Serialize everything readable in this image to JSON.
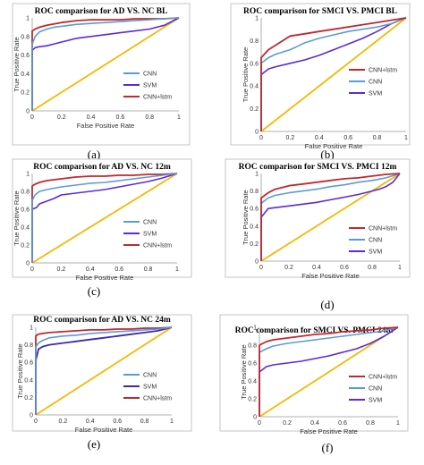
{
  "chart_data": [
    {
      "type": "line",
      "panel_label": "(a)",
      "title": "ROC comparison for AD VS. NC BL",
      "xlabel": "False Positive Rate",
      "ylabel": "True Positive Rate",
      "xlim": [
        0,
        1
      ],
      "ylim": [
        0,
        1
      ],
      "x_ticks": [
        "0",
        "0.2",
        "0.4",
        "0.6",
        "0.8",
        "1"
      ],
      "y_ticks": [
        "0",
        "0.2",
        "0.4",
        "0.6",
        "0.8",
        "1"
      ],
      "grid": false,
      "legend_position": "lower-right",
      "series": [
        {
          "name": "CNN",
          "color": "#5b9bd5",
          "width": 1.6,
          "x": [
            0,
            0,
            0.02,
            0.05,
            0.1,
            0.15,
            0.2,
            0.3,
            0.4,
            0.5,
            0.6,
            0.7,
            0.8,
            0.9,
            1
          ],
          "y": [
            0,
            0.72,
            0.8,
            0.85,
            0.88,
            0.9,
            0.91,
            0.93,
            0.94,
            0.95,
            0.96,
            0.97,
            0.98,
            0.99,
            1
          ]
        },
        {
          "name": "SVM",
          "color": "#5b2bd6",
          "width": 1.6,
          "x": [
            0,
            0,
            0.02,
            0.05,
            0.1,
            0.15,
            0.2,
            0.25,
            0.3,
            0.35,
            0.4,
            0.5,
            0.6,
            0.7,
            0.8,
            0.9,
            1
          ],
          "y": [
            0,
            0.65,
            0.68,
            0.69,
            0.7,
            0.72,
            0.74,
            0.76,
            0.78,
            0.79,
            0.8,
            0.82,
            0.84,
            0.86,
            0.88,
            0.92,
            1
          ]
        },
        {
          "name": "CNN+lstm",
          "color": "#c0282f",
          "width": 1.8,
          "x": [
            0,
            0,
            0.02,
            0.05,
            0.1,
            0.2,
            0.3,
            0.4,
            0.5,
            0.6,
            0.7,
            0.8,
            0.9,
            1
          ],
          "y": [
            0,
            0.86,
            0.88,
            0.9,
            0.92,
            0.95,
            0.97,
            0.98,
            0.98,
            0.98,
            0.99,
            0.99,
            0.99,
            1
          ]
        },
        {
          "name": "",
          "color": "#f5b800",
          "width": 1.8,
          "x": [
            0,
            1
          ],
          "y": [
            0,
            1
          ]
        }
      ]
    },
    {
      "type": "line",
      "panel_label": "(b)",
      "title": "ROC comparison for SMCI VS. PMCI BL",
      "xlabel": "False Positive Rate",
      "ylabel": "True Positive Rate",
      "xlim": [
        0,
        1
      ],
      "ylim": [
        0,
        1
      ],
      "x_ticks": [
        "0",
        "0.2",
        "0.4",
        "0.6",
        "0.8",
        "1"
      ],
      "y_ticks": [
        "0",
        "0.2",
        "0.4",
        "0.6",
        "0.8",
        "1"
      ],
      "grid": false,
      "legend_position": "lower-right",
      "series": [
        {
          "name": "CNN+lstm",
          "color": "#c0282f",
          "width": 1.8,
          "x": [
            0,
            0,
            0.05,
            0.1,
            0.15,
            0.2,
            0.3,
            0.4,
            0.5,
            0.6,
            0.7,
            0.8,
            0.9,
            1
          ],
          "y": [
            0,
            0.65,
            0.72,
            0.76,
            0.8,
            0.84,
            0.86,
            0.88,
            0.9,
            0.92,
            0.94,
            0.96,
            0.98,
            1
          ]
        },
        {
          "name": "CNN",
          "color": "#5b9bd5",
          "width": 1.6,
          "x": [
            0,
            0,
            0.05,
            0.1,
            0.15,
            0.2,
            0.25,
            0.3,
            0.4,
            0.5,
            0.6,
            0.7,
            0.8,
            0.9,
            1
          ],
          "y": [
            0,
            0.6,
            0.65,
            0.68,
            0.7,
            0.72,
            0.75,
            0.78,
            0.82,
            0.85,
            0.88,
            0.9,
            0.92,
            0.95,
            1
          ]
        },
        {
          "name": "SVM",
          "color": "#5b2bd6",
          "width": 1.6,
          "x": [
            0,
            0,
            0.05,
            0.1,
            0.2,
            0.3,
            0.4,
            0.5,
            0.6,
            0.7,
            0.8,
            0.9,
            1
          ],
          "y": [
            0,
            0.5,
            0.55,
            0.57,
            0.6,
            0.63,
            0.67,
            0.72,
            0.77,
            0.82,
            0.88,
            0.95,
            1
          ]
        },
        {
          "name": "",
          "color": "#f5b800",
          "width": 1.8,
          "x": [
            0,
            1
          ],
          "y": [
            0,
            1
          ]
        }
      ]
    },
    {
      "type": "line",
      "panel_label": "(c)",
      "title": "ROC comparison for AD VS. NC 12m",
      "xlabel": "False Positive Rate",
      "ylabel": "True Positive Rate",
      "xlim": [
        0,
        1
      ],
      "ylim": [
        0,
        1
      ],
      "x_ticks": [
        "0",
        "0.2",
        "0.4",
        "0.6",
        "0.8",
        "1"
      ],
      "y_ticks": [
        "0",
        "0.2",
        "0.4",
        "0.6",
        "0.8",
        "1"
      ],
      "grid": false,
      "legend_position": "lower-right",
      "series": [
        {
          "name": "CNN",
          "color": "#5b9bd5",
          "width": 1.6,
          "x": [
            0,
            0,
            0.02,
            0.05,
            0.1,
            0.2,
            0.3,
            0.4,
            0.5,
            0.6,
            0.7,
            0.8,
            0.9,
            1
          ],
          "y": [
            0,
            0.7,
            0.76,
            0.8,
            0.82,
            0.85,
            0.87,
            0.89,
            0.9,
            0.92,
            0.94,
            0.96,
            0.98,
            1
          ]
        },
        {
          "name": "SVM",
          "color": "#5b2bd6",
          "width": 1.6,
          "x": [
            0,
            0,
            0.03,
            0.05,
            0.1,
            0.15,
            0.2,
            0.3,
            0.4,
            0.5,
            0.6,
            0.7,
            0.8,
            0.9,
            1
          ],
          "y": [
            0,
            0.6,
            0.62,
            0.66,
            0.69,
            0.72,
            0.76,
            0.78,
            0.8,
            0.82,
            0.85,
            0.88,
            0.91,
            0.95,
            1
          ]
        },
        {
          "name": "CNN+lstm",
          "color": "#c0282f",
          "width": 1.8,
          "x": [
            0,
            0,
            0.02,
            0.05,
            0.1,
            0.2,
            0.3,
            0.4,
            0.5,
            0.6,
            0.7,
            0.8,
            0.9,
            1
          ],
          "y": [
            0,
            0.86,
            0.88,
            0.9,
            0.92,
            0.94,
            0.96,
            0.97,
            0.97,
            0.98,
            0.98,
            0.99,
            0.99,
            1
          ]
        },
        {
          "name": "",
          "color": "#f5b800",
          "width": 1.8,
          "x": [
            0,
            1
          ],
          "y": [
            0,
            1
          ]
        }
      ]
    },
    {
      "type": "line",
      "panel_label": "(d)",
      "title": "ROC comparison for SMCI VS. PMCI 12m",
      "xlabel": "False Positive Rate",
      "ylabel": "True Positive Rate",
      "xlim": [
        0,
        1
      ],
      "ylim": [
        0,
        1
      ],
      "x_ticks": [
        "0",
        "0.2",
        "0.4",
        "0.6",
        "0.8",
        "1"
      ],
      "y_ticks": [
        "0",
        "0.2",
        "0.4",
        "0.6",
        "0.8",
        "1"
      ],
      "grid": false,
      "legend_position": "lower-right",
      "series": [
        {
          "name": "CNN+lstm",
          "color": "#c0282f",
          "width": 1.8,
          "x": [
            0,
            0,
            0.05,
            0.1,
            0.15,
            0.2,
            0.3,
            0.4,
            0.5,
            0.6,
            0.7,
            0.8,
            0.9,
            1
          ],
          "y": [
            0,
            0.72,
            0.78,
            0.82,
            0.84,
            0.86,
            0.88,
            0.9,
            0.92,
            0.94,
            0.95,
            0.97,
            0.99,
            1
          ]
        },
        {
          "name": "CNN",
          "color": "#5b9bd5",
          "width": 1.6,
          "x": [
            0,
            0,
            0.05,
            0.1,
            0.2,
            0.3,
            0.4,
            0.5,
            0.6,
            0.7,
            0.8,
            0.9,
            1
          ],
          "y": [
            0,
            0.66,
            0.72,
            0.75,
            0.78,
            0.8,
            0.82,
            0.85,
            0.87,
            0.9,
            0.92,
            0.95,
            1
          ]
        },
        {
          "name": "SVM",
          "color": "#5b2bd6",
          "width": 1.6,
          "x": [
            0,
            0,
            0.05,
            0.1,
            0.2,
            0.3,
            0.4,
            0.5,
            0.6,
            0.7,
            0.8,
            0.85,
            0.9,
            0.95,
            1
          ],
          "y": [
            0,
            0.5,
            0.6,
            0.61,
            0.63,
            0.65,
            0.67,
            0.7,
            0.73,
            0.76,
            0.8,
            0.82,
            0.85,
            0.9,
            1
          ]
        },
        {
          "name": "",
          "color": "#f5b800",
          "width": 1.8,
          "x": [
            0,
            1
          ],
          "y": [
            0,
            1
          ]
        }
      ]
    },
    {
      "type": "line",
      "panel_label": "(e)",
      "title": "ROC comparison for AD VS. NC 24m",
      "xlabel": "False Positive Rate",
      "ylabel": "True Positive Rate",
      "xlim": [
        0,
        1
      ],
      "ylim": [
        0,
        1
      ],
      "x_ticks": [
        "0",
        "0.2",
        "0.4",
        "0.6",
        "0.8",
        "1"
      ],
      "y_ticks": [
        "0",
        "0.2",
        "0.4",
        "0.6",
        "0.8",
        "1"
      ],
      "grid": false,
      "legend_position": "lower-right",
      "series": [
        {
          "name": "CNN",
          "color": "#5b9bd5",
          "width": 1.6,
          "x": [
            0,
            0,
            0.02,
            0.05,
            0.1,
            0.2,
            0.3,
            0.4,
            0.5,
            0.6,
            0.7,
            0.8,
            0.9,
            1
          ],
          "y": [
            0,
            0.78,
            0.82,
            0.85,
            0.88,
            0.9,
            0.91,
            0.93,
            0.94,
            0.95,
            0.96,
            0.97,
            0.98,
            1
          ]
        },
        {
          "name": "SVM",
          "color": "#3a2ab0",
          "width": 1.8,
          "x": [
            0,
            0,
            0.02,
            0.05,
            0.1,
            0.2,
            0.3,
            0.4,
            0.5,
            0.6,
            0.7,
            0.8,
            0.9,
            1
          ],
          "y": [
            0,
            0.62,
            0.75,
            0.78,
            0.8,
            0.82,
            0.84,
            0.86,
            0.88,
            0.9,
            0.92,
            0.94,
            0.96,
            1
          ]
        },
        {
          "name": "CNN+lstm",
          "color": "#c0282f",
          "width": 1.8,
          "x": [
            0,
            0,
            0.02,
            0.05,
            0.1,
            0.2,
            0.3,
            0.4,
            0.5,
            0.6,
            0.7,
            0.8,
            0.9,
            1
          ],
          "y": [
            0,
            0.9,
            0.92,
            0.93,
            0.94,
            0.95,
            0.96,
            0.97,
            0.97,
            0.98,
            0.98,
            0.99,
            0.99,
            1
          ]
        },
        {
          "name": "",
          "color": "#f5b800",
          "width": 1.8,
          "x": [
            0,
            1
          ],
          "y": [
            0,
            1
          ]
        }
      ]
    },
    {
      "type": "line",
      "panel_label": "(f)",
      "title": "ROC comparison for SMCI VS. PMCI 24m",
      "xlabel": "False Positive Rate",
      "ylabel": "True Positive Rate",
      "xlim": [
        0,
        1
      ],
      "ylim": [
        0,
        1
      ],
      "x_ticks": [
        "0",
        "0.2",
        "0.4",
        "0.6",
        "0.8",
        "1"
      ],
      "y_ticks": [
        "0",
        "0.2",
        "0.4",
        "0.6",
        "0.8",
        "1"
      ],
      "grid": false,
      "legend_position": "lower-right",
      "series": [
        {
          "name": "CNN+lstm",
          "color": "#c0282f",
          "width": 1.8,
          "x": [
            0,
            0,
            0.05,
            0.1,
            0.2,
            0.3,
            0.4,
            0.5,
            0.6,
            0.7,
            0.8,
            0.9,
            1
          ],
          "y": [
            0,
            0.8,
            0.84,
            0.86,
            0.88,
            0.9,
            0.92,
            0.93,
            0.95,
            0.96,
            0.97,
            0.99,
            1
          ]
        },
        {
          "name": "CNN",
          "color": "#5b9bd5",
          "width": 1.6,
          "x": [
            0,
            0,
            0.05,
            0.1,
            0.2,
            0.3,
            0.4,
            0.5,
            0.6,
            0.7,
            0.8,
            0.9,
            1
          ],
          "y": [
            0,
            0.72,
            0.76,
            0.79,
            0.82,
            0.84,
            0.86,
            0.88,
            0.9,
            0.92,
            0.94,
            0.96,
            1
          ]
        },
        {
          "name": "SVM",
          "color": "#5b2bd6",
          "width": 1.6,
          "x": [
            0,
            0,
            0.05,
            0.1,
            0.2,
            0.3,
            0.4,
            0.5,
            0.6,
            0.7,
            0.8,
            0.9,
            1
          ],
          "y": [
            0,
            0.5,
            0.56,
            0.58,
            0.6,
            0.62,
            0.65,
            0.68,
            0.72,
            0.76,
            0.82,
            0.9,
            1
          ]
        },
        {
          "name": "",
          "color": "#f5b800",
          "width": 1.8,
          "x": [
            0,
            1
          ],
          "y": [
            0,
            1
          ]
        }
      ]
    }
  ]
}
